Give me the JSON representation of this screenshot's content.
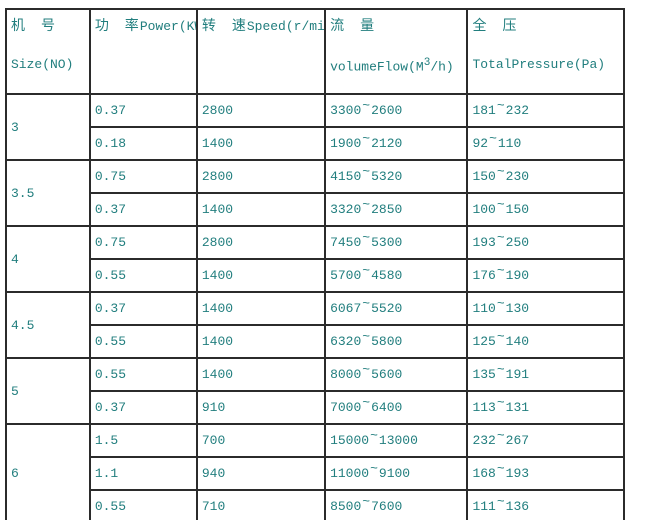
{
  "table": {
    "text_color": "#217e7e",
    "border_color": "#2b2b2b",
    "range_separator": "~",
    "columns": [
      {
        "zh": "机　号",
        "en": "Size(NO)"
      },
      {
        "zh": "功　率",
        "en_inline": "Power(KW)"
      },
      {
        "zh": "转　速",
        "en_inline": "Speed(r/min)"
      },
      {
        "zh": "流　量",
        "en_pre": "volumeFlow(M",
        "en_sup": "3",
        "en_post": "/h)"
      },
      {
        "zh": "全　压",
        "en": "TotalPressure(Pa)"
      }
    ],
    "groups": [
      {
        "size": "3",
        "rows": [
          {
            "power": "0.37",
            "speed": "2800",
            "flow": [
              "3300",
              "2600"
            ],
            "pressure": [
              "181",
              "232"
            ]
          },
          {
            "power": "0.18",
            "speed": "1400",
            "flow": [
              "1900",
              "2120"
            ],
            "pressure": [
              "92",
              "110"
            ]
          }
        ]
      },
      {
        "size": "3.5",
        "rows": [
          {
            "power": "0.75",
            "speed": "2800",
            "flow": [
              "4150",
              "5320"
            ],
            "pressure": [
              "150",
              "230"
            ]
          },
          {
            "power": "0.37",
            "speed": "1400",
            "flow": [
              "3320",
              "2850"
            ],
            "pressure": [
              "100",
              "150"
            ]
          }
        ]
      },
      {
        "size": "4",
        "rows": [
          {
            "power": "0.75",
            "speed": "2800",
            "flow": [
              "7450",
              "5300"
            ],
            "pressure": [
              "193",
              "250"
            ]
          },
          {
            "power": "0.55",
            "speed": "1400",
            "flow": [
              "5700",
              "4580"
            ],
            "pressure": [
              "176",
              "190"
            ]
          }
        ]
      },
      {
        "size": "4.5",
        "rows": [
          {
            "power": "0.37",
            "speed": "1400",
            "flow": [
              "6067",
              "5520"
            ],
            "pressure": [
              "110",
              "130"
            ]
          },
          {
            "power": "0.55",
            "speed": "1400",
            "flow": [
              "6320",
              "5800"
            ],
            "pressure": [
              "125",
              "140"
            ]
          }
        ]
      },
      {
        "size": "5",
        "rows": [
          {
            "power": "0.55",
            "speed": "1400",
            "flow": [
              "8000",
              "5600"
            ],
            "pressure": [
              "135",
              "191"
            ]
          },
          {
            "power": "0.37",
            "speed": "910",
            "flow": [
              "7000",
              "6400"
            ],
            "pressure": [
              "113",
              "131"
            ]
          }
        ]
      },
      {
        "size": "6",
        "rows": [
          {
            "power": "1.5",
            "speed": "700",
            "flow": [
              "15000",
              "13000"
            ],
            "pressure": [
              "232",
              "267"
            ]
          },
          {
            "power": "1.1",
            "speed": "940",
            "flow": [
              "11000",
              "9100"
            ],
            "pressure": [
              "168",
              "193"
            ]
          },
          {
            "power": "0.55",
            "speed": "710",
            "flow": [
              "8500",
              "7600"
            ],
            "pressure": [
              "111",
              "136"
            ]
          }
        ]
      }
    ]
  }
}
